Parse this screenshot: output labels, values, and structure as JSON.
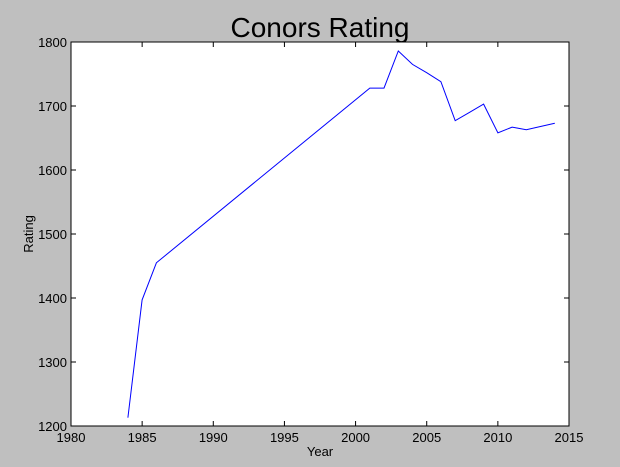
{
  "chart_data": {
    "type": "line",
    "title": "Conors Rating",
    "xlabel": "Year",
    "ylabel": "Rating",
    "xlim": [
      1980,
      2015
    ],
    "ylim": [
      1200,
      1800
    ],
    "xticks": [
      1980,
      1985,
      1990,
      1995,
      2000,
      2005,
      2010,
      2015
    ],
    "yticks": [
      1200,
      1300,
      1400,
      1500,
      1600,
      1700,
      1800
    ],
    "grid": false,
    "background_color": "#ffffff",
    "figure_color": "#bfbfbf",
    "series": [
      {
        "color": "#0000ff",
        "x": [
          1984,
          1985,
          1986,
          2001,
          2002,
          2003,
          2004,
          2005,
          2006,
          2007,
          2008,
          2009,
          2010,
          2011,
          2012,
          2013,
          2014
        ],
        "y": [
          1213,
          1397,
          1455,
          1728,
          1728,
          1786,
          1765,
          1752,
          1738,
          1677,
          1690,
          1703,
          1658,
          1667,
          1663,
          1668,
          1673
        ]
      }
    ]
  }
}
